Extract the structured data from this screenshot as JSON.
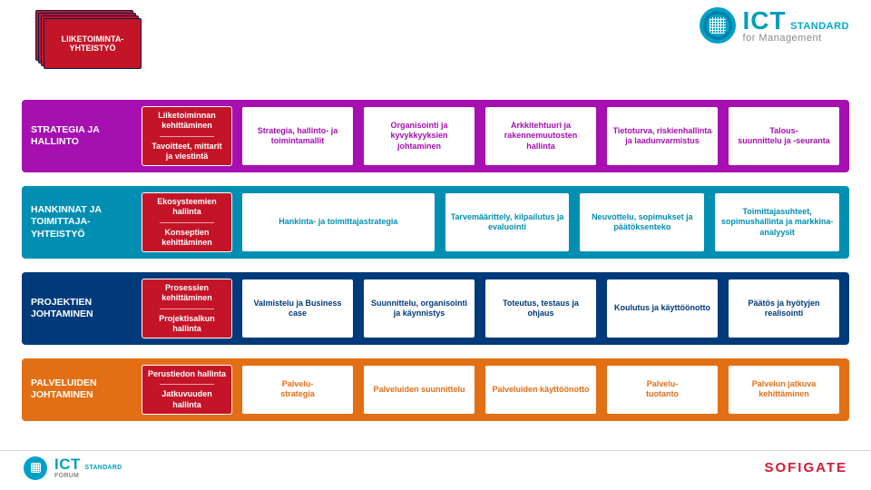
{
  "brand": {
    "ict": "ICT",
    "standard": "STANDARD",
    "for": "for Management",
    "forum": "STANDARD",
    "forum_sub": "FORUM",
    "sofigate": "SOFIGATE"
  },
  "colors": {
    "red": "#c41427",
    "navy": "#00214d",
    "row1_bg": "#a60fb0",
    "row1_text": "#a60fb0",
    "row2_bg": "#008fb3",
    "row2_text": "#008fb3",
    "row3_bg": "#003a7a",
    "row3_text": "#003a7a",
    "row4_bg": "#e36f14",
    "row4_text": "#e36f14"
  },
  "float_box": "LIIKETOIMINTA-\nYHTEISTYÖ",
  "rows": [
    {
      "label": "STRATEGIA JA HALLINTO",
      "red": [
        "Liiketoiminnan kehittäminen",
        "Tavoitteet, mittarit ja viestintä"
      ],
      "cells": [
        "Strategia, hallinto- ja toimintamallit",
        "Organisointi ja kyvykkyyksien johtaminen",
        "Arkkitehtuuri ja rakennemuutosten hallinta",
        "Tietoturva, riskienhallinta ja laadunvarmistus",
        "Talous-\nsuunnittelu ja -seuranta"
      ]
    },
    {
      "label": "HANKINNAT JA TOIMITTAJA-\nYHTEISTYÖ",
      "red": [
        "Ekosysteemien hallinta",
        "Konseptien kehittäminen"
      ],
      "cells_wide_first": true,
      "cells": [
        "Hankinta- ja toimittajastrategia",
        "Tarvemäärittely, kilpailutus ja evaluointi",
        "Neuvottelu, sopimukset ja päätöksenteko",
        "Toimittajasuhteet, sopimushallinta ja markkina-analyysit"
      ]
    },
    {
      "label": "PROJEKTIEN JOHTAMINEN",
      "red": [
        "Prosessien kehittäminen",
        "Projektisalkun hallinta"
      ],
      "cells": [
        "Valmistelu ja Business case",
        "Suunnittelu, organisointi ja käynnistys",
        "Toteutus, testaus ja ohjaus",
        "Koulutus ja käyttöönotto",
        "Päätös ja hyötyjen realisointi"
      ]
    },
    {
      "label": "PALVELUIDEN JOHTAMINEN",
      "red": [
        "Perustiedon hallinta",
        "Jatkuvuuden hallinta"
      ],
      "cells": [
        "Palvelu-\nstrategia",
        "Palveluiden suunnittelu",
        "Palveluiden käyttöönotto",
        "Palvelu-\ntuotanto",
        "Palvelun jatkuva kehittäminen"
      ]
    }
  ]
}
